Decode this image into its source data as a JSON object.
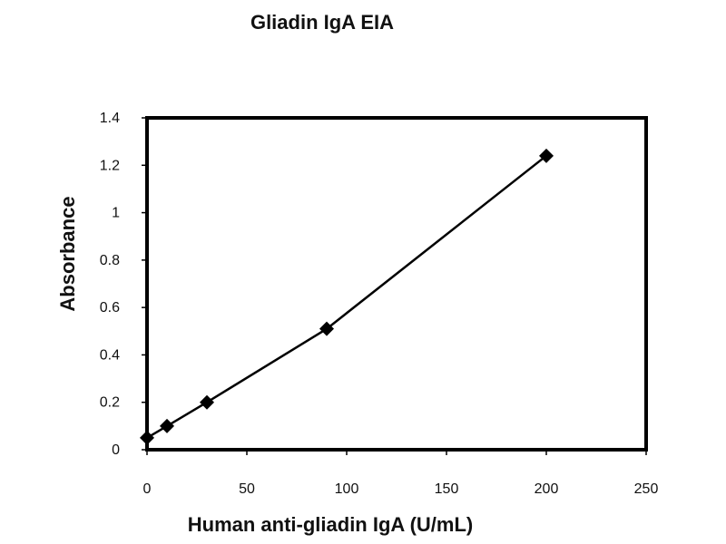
{
  "chart_data": {
    "type": "line",
    "title": "Gliadin IgA EIA",
    "xlabel": "Human anti-gliadin IgA (U/mL)",
    "ylabel": "Absorbance",
    "xlim": [
      0,
      250
    ],
    "ylim": [
      0,
      1.4
    ],
    "xticks": [
      "0",
      "50",
      "100",
      "150",
      "200",
      "250"
    ],
    "yticks": [
      "0",
      "0.2",
      "0.4",
      "0.6",
      "0.8",
      "1",
      "1.2",
      "1.4"
    ],
    "grid": false,
    "marker": "diamond",
    "colors": {
      "line": "#000000",
      "marker": "#000000",
      "frame": "#000000"
    },
    "series": [
      {
        "x": [
          0,
          10,
          30,
          90,
          200
        ],
        "y": [
          0.05,
          0.1,
          0.2,
          0.51,
          1.24
        ]
      }
    ]
  }
}
